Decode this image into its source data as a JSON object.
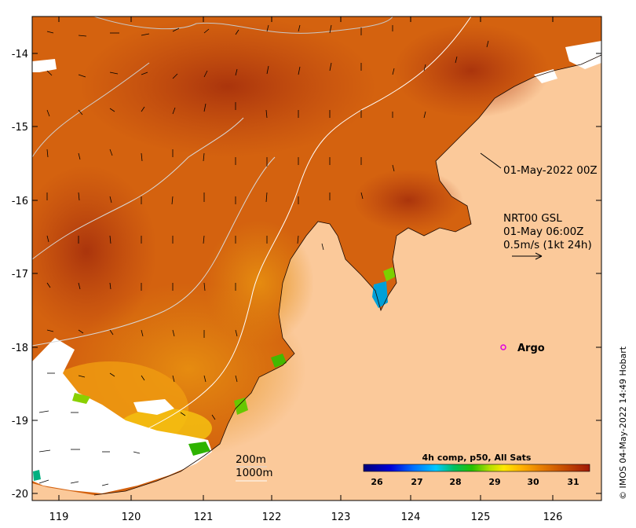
{
  "colors": {
    "land": "#fbc99a",
    "warm_high": "#b23a0a",
    "warm_mid": "#d4620f",
    "warm_low": "#e8920c",
    "cool": "#f2c20a",
    "nodata": "#ffffff",
    "argo": "#e000e0"
  },
  "map": {
    "lon_ticks": [
      "119",
      "120",
      "121",
      "122",
      "123",
      "124",
      "125",
      "126"
    ],
    "lat_ticks": [
      "-14",
      "-15",
      "-16",
      "-17",
      "-18",
      "-19",
      "-20"
    ],
    "timestamp_label": "01-May-2022 00Z",
    "current_title": "NRT00 GSL",
    "current_time": "01-May 06:00Z",
    "current_scale": "0.5m/s (1kt 24h)",
    "argo_label": "Argo",
    "contour_200": "200m",
    "contour_1000": "1000m",
    "colorbar_title": "4h comp, p50, All Sats",
    "colorbar_ticks": [
      "26",
      "27",
      "28",
      "29",
      "30",
      "31"
    ],
    "credit": "© IMOS 04-May-2022 14:49 Hobart"
  }
}
